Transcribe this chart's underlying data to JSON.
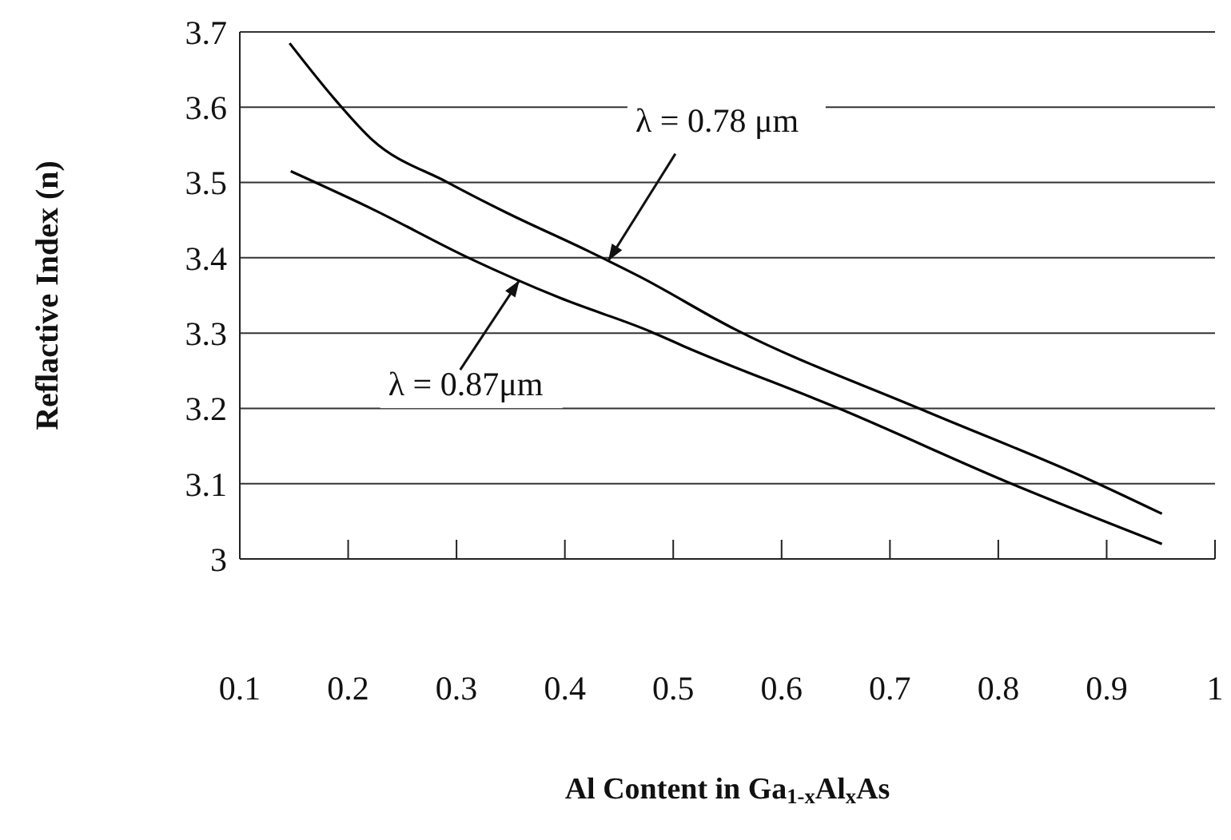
{
  "chart_data": {
    "type": "line",
    "xlabel": "Al Content in Ga$_{1-x}$Al$_{x}$As",
    "ylabel": "Reflactive Index (n)",
    "xlim": [
      0.1,
      1
    ],
    "xticks": [
      0.1,
      0.2,
      0.3,
      0.4,
      0.5,
      0.6,
      0.7,
      0.8,
      0.9,
      1
    ],
    "ylim": [
      3,
      3.7
    ],
    "yticks": [
      3,
      3.1,
      3.2,
      3.3,
      3.4,
      3.5,
      3.6,
      3.7
    ],
    "grid": "y",
    "marker": "none",
    "line_style": "solid",
    "series": [
      {
        "color": "#000000",
        "x": [
          0.146,
          0.188,
          0.222,
          0.292,
          0.346,
          0.42,
          0.469,
          0.557,
          0.73,
          0.886,
          0.951
        ],
        "values": [
          3.685,
          3.61,
          3.557,
          3.5,
          3.46,
          3.41,
          3.375,
          3.305,
          3.198,
          3.104,
          3.06
        ]
      },
      {
        "color": "#000000",
        "x": [
          0.147,
          0.222,
          0.311,
          0.395,
          0.479,
          0.509,
          0.656,
          0.812,
          0.951
        ],
        "values": [
          3.515,
          3.465,
          3.4,
          3.347,
          3.302,
          3.283,
          3.198,
          3.1,
          3.02
        ]
      }
    ],
    "annotations": [
      {
        "text": "λ = 0.78 μm",
        "x": 0.44,
        "y": 3.396
      },
      {
        "text": "λ = 0.87μm",
        "x": 0.358,
        "y": 3.37
      }
    ]
  }
}
